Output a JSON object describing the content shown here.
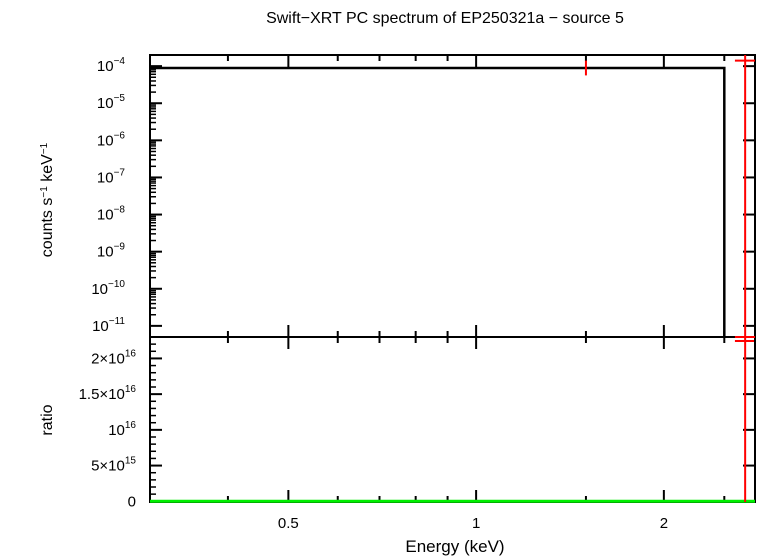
{
  "title": "Swift−XRT PC spectrum of EP250321a − source 5",
  "colors": {
    "data": "#ff0000",
    "model": "#000000",
    "ratio_line": "#00ee00",
    "frame": "#000000"
  },
  "chart_data": [
    {
      "panel": "spectrum",
      "type": "line",
      "ylabel_parts": [
        "counts s",
        "−1",
        " keV",
        "−1"
      ],
      "xscale": "log",
      "yscale": "log",
      "xlim": [
        0.3,
        2.8
      ],
      "ylim_exp": [
        -11.3,
        -3.7
      ],
      "ytick_exponents": [
        "−4",
        "−5",
        "−6",
        "−7",
        "−8",
        "−9",
        "−10",
        "−11"
      ],
      "ytick_values": [
        -4,
        -5,
        -6,
        -7,
        -8,
        -9,
        -10,
        -11
      ],
      "model_step": {
        "x_start": 0.3,
        "x_end": 2.5,
        "y_exp": -4.05,
        "drop_to_exp": -11.3
      },
      "data_points": [
        {
          "x": 1.5,
          "y_exp": -4.05,
          "x_err": 0,
          "y_err_exp": 0.2
        },
        {
          "x": 2.7,
          "y_exp": -3.85,
          "x_err": 0.1,
          "y_err_exp": 0
        }
      ],
      "data_vertical": {
        "x": 2.7
      }
    },
    {
      "panel": "ratio",
      "type": "line",
      "ylabel": "ratio",
      "xlabel": "Energy (keV)",
      "xscale": "log",
      "xlim": [
        0.3,
        2.8
      ],
      "ylim": [
        -100000000000000.0,
        2.3e+16
      ],
      "yticks": [
        {
          "value": 0,
          "mant": "0",
          "exp": ""
        },
        {
          "value": 5000000000000000.0,
          "mant": "5×10",
          "exp": "15"
        },
        {
          "value": 1e+16,
          "mant": "10",
          "exp": "16"
        },
        {
          "value": 1.5e+16,
          "mant": "1.5×10",
          "exp": "16"
        },
        {
          "value": 2e+16,
          "mant": "2×10",
          "exp": "16"
        }
      ],
      "xtick_labels": [
        {
          "value": 0.5,
          "label": "0.5"
        },
        {
          "value": 1,
          "label": "1"
        },
        {
          "value": 2,
          "label": "2"
        }
      ],
      "reference_line": 1,
      "data_point": {
        "x": 2.7,
        "y_top": 2.3e+16,
        "y_bottom": -100000000000000.0,
        "x_err": 0.1,
        "y_cap": 2.3e+16
      }
    }
  ]
}
